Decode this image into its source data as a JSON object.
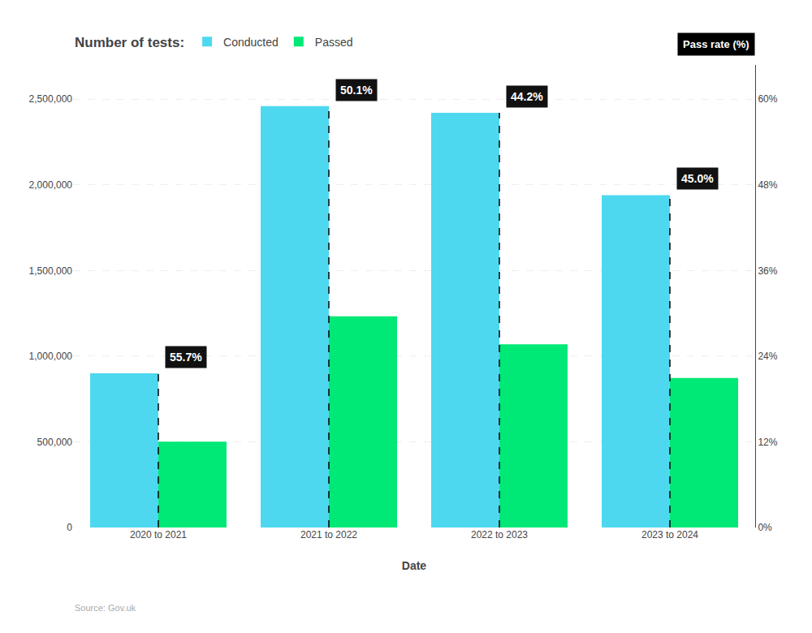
{
  "chart_data": {
    "type": "bar",
    "categories": [
      "2020 to 2021",
      "2021 to 2022",
      "2022 to 2023",
      "2023 to 2024"
    ],
    "series": [
      {
        "name": "Conducted",
        "color": "#4DD8F0",
        "values": [
          900000,
          2460000,
          2420000,
          1940000
        ]
      },
      {
        "name": "Passed",
        "color": "#00E876",
        "values": [
          501300,
          1232460,
          1069640,
          873000
        ]
      }
    ],
    "legend_title": "Number of tests:",
    "legend": "top",
    "xlabel": "Date",
    "y2label": "Pass rate (%)",
    "annotations": [
      "55.7%",
      "50.1%",
      "44.2%",
      "45.0%"
    ],
    "source": "Source: Gov.uk",
    "ylim": [
      0,
      2700000
    ],
    "yticks": [
      0,
      {
        "value": 500000,
        "label": "500,000"
      },
      {
        "value": 1000000,
        "label": "1,000,000"
      },
      {
        "value": 1500000,
        "label": "1,500,000"
      },
      {
        "value": 2000000,
        "label": "2,000,000"
      },
      {
        "value": 2500000,
        "label": "2,500,000"
      }
    ],
    "y2lim": [
      0,
      0.648
    ],
    "y2ticks": [
      {
        "value": 0,
        "label": "0%"
      },
      {
        "value": 0.12,
        "label": "12%"
      },
      {
        "value": 0.24,
        "label": "24%"
      },
      {
        "value": 0.36,
        "label": "36%"
      },
      {
        "value": 0.48,
        "label": "48%"
      },
      {
        "value": 0.6,
        "label": "60%"
      }
    ],
    "grid": true
  }
}
